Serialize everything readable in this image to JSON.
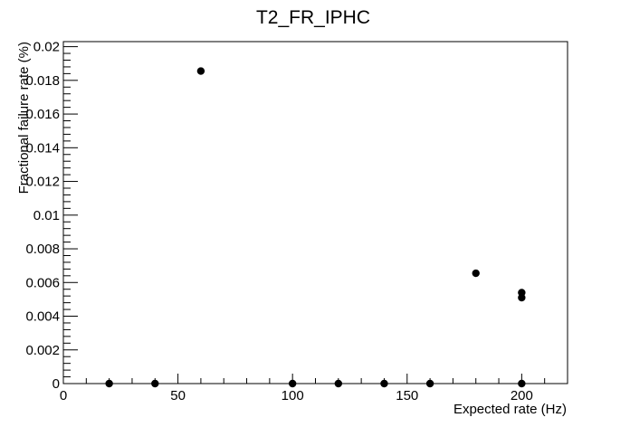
{
  "chart_data": {
    "type": "scatter",
    "title": "T2_FR_IPHC",
    "xlabel": "Expected rate (Hz)",
    "ylabel": "Fractional failure rate (%)",
    "xlim": [
      0,
      220
    ],
    "ylim": [
      0,
      0.0203
    ],
    "x_ticks": [
      0,
      50,
      100,
      150,
      200
    ],
    "x_tick_labels": [
      "0",
      "50",
      "100",
      "150",
      "200"
    ],
    "y_ticks": [
      0,
      0.002,
      0.004,
      0.006,
      0.008,
      0.01,
      0.012,
      0.014,
      0.016,
      0.018,
      0.02
    ],
    "y_tick_labels": [
      "0",
      "0.002",
      "0.004",
      "0.006",
      "0.008",
      "0.01",
      "0.012",
      "0.014",
      "0.016",
      "0.018",
      "0.02"
    ],
    "grid": false,
    "legend": "none",
    "marker_color": "#000000",
    "points": [
      {
        "x": 20,
        "y": 0
      },
      {
        "x": 40,
        "y": 0
      },
      {
        "x": 60,
        "y": 0.01855
      },
      {
        "x": 100,
        "y": 0
      },
      {
        "x": 120,
        "y": 0
      },
      {
        "x": 140,
        "y": 0
      },
      {
        "x": 160,
        "y": 0
      },
      {
        "x": 180,
        "y": 0.00655
      },
      {
        "x": 200,
        "y": 0.0054
      },
      {
        "x": 200,
        "y": 0.0051
      },
      {
        "x": 200,
        "y": 0
      }
    ]
  }
}
